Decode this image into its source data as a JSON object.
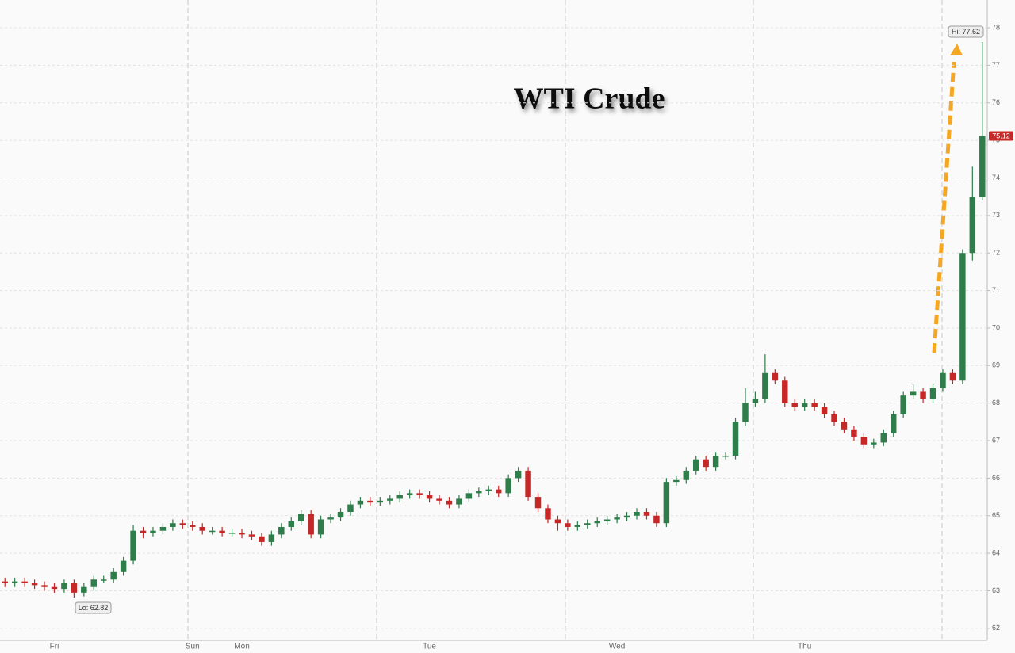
{
  "chart_data": {
    "type": "candlestick",
    "title": "WTI Crude",
    "categories": [
      null,
      null,
      null,
      null,
      null,
      "Fri",
      null,
      null,
      null,
      null,
      null,
      null,
      null,
      null,
      null,
      null,
      null,
      null,
      null,
      "Sun",
      null,
      null,
      null,
      null,
      "Mon",
      null,
      null,
      null,
      null,
      null,
      null,
      null,
      null,
      null,
      null,
      null,
      null,
      null,
      null,
      null,
      null,
      null,
      null,
      "Tue",
      null,
      null,
      null,
      null,
      null,
      null,
      null,
      null,
      null,
      null,
      null,
      null,
      null,
      null,
      null,
      null,
      null,
      null,
      "Wed",
      null,
      null,
      null,
      null,
      null,
      null,
      null,
      null,
      null,
      null,
      null,
      null,
      null,
      null,
      null,
      null,
      null,
      null,
      "Thu",
      null,
      null,
      null,
      null,
      null,
      null,
      null,
      null,
      null,
      null,
      null,
      null,
      null,
      null,
      null,
      null,
      null,
      null
    ],
    "open": [
      63.25,
      63.2,
      63.25,
      63.2,
      63.15,
      63.1,
      63.05,
      63.2,
      62.95,
      63.1,
      63.3,
      63.3,
      63.5,
      63.8,
      64.6,
      64.55,
      64.6,
      64.7,
      64.8,
      64.75,
      64.7,
      64.6,
      64.6,
      64.55,
      64.55,
      64.5,
      64.45,
      64.3,
      64.5,
      64.7,
      64.85,
      65.05,
      64.5,
      64.9,
      64.95,
      65.1,
      65.3,
      65.4,
      65.35,
      65.4,
      65.45,
      65.55,
      65.6,
      65.55,
      65.45,
      65.4,
      65.3,
      65.45,
      65.6,
      65.65,
      65.7,
      65.6,
      66.0,
      66.2,
      65.5,
      65.2,
      64.9,
      64.8,
      64.7,
      64.75,
      64.8,
      64.85,
      64.9,
      64.95,
      65.0,
      65.1,
      65.0,
      64.8,
      65.9,
      65.95,
      66.2,
      66.5,
      66.3,
      66.6,
      66.6,
      67.5,
      68.0,
      68.1,
      68.8,
      68.6,
      68.0,
      67.9,
      68.0,
      67.9,
      67.7,
      67.5,
      67.3,
      67.1,
      66.9,
      66.95,
      67.2,
      67.7,
      68.2,
      68.3,
      68.1,
      68.4,
      68.8,
      68.6,
      72.0,
      73.5
    ],
    "high": [
      63.35,
      63.35,
      63.35,
      63.3,
      63.25,
      63.2,
      63.3,
      63.3,
      63.2,
      63.4,
      63.4,
      63.6,
      63.9,
      64.75,
      64.7,
      64.7,
      64.8,
      64.9,
      64.9,
      64.85,
      64.8,
      64.7,
      64.7,
      64.65,
      64.65,
      64.6,
      64.55,
      64.6,
      64.8,
      64.95,
      65.15,
      65.15,
      65.0,
      65.05,
      65.2,
      65.4,
      65.5,
      65.5,
      65.5,
      65.55,
      65.65,
      65.7,
      65.7,
      65.65,
      65.55,
      65.5,
      65.55,
      65.7,
      65.75,
      65.8,
      65.8,
      66.1,
      66.3,
      66.3,
      65.6,
      65.3,
      65.0,
      64.9,
      64.85,
      64.9,
      64.95,
      65.0,
      65.05,
      65.1,
      65.2,
      65.2,
      65.1,
      66.0,
      66.05,
      66.3,
      66.6,
      66.6,
      66.7,
      66.7,
      67.6,
      68.4,
      68.3,
      69.3,
      68.9,
      68.7,
      68.1,
      68.1,
      68.1,
      68.0,
      67.8,
      67.6,
      67.4,
      67.2,
      67.05,
      67.3,
      67.8,
      68.3,
      68.5,
      68.4,
      68.5,
      68.9,
      68.9,
      72.1,
      74.3,
      77.62
    ],
    "low": [
      63.1,
      63.1,
      63.1,
      63.05,
      63.0,
      62.95,
      62.95,
      62.82,
      62.85,
      63.0,
      63.2,
      63.2,
      63.4,
      63.7,
      64.4,
      64.45,
      64.5,
      64.6,
      64.65,
      64.6,
      64.5,
      64.5,
      64.45,
      64.45,
      64.4,
      64.35,
      64.2,
      64.2,
      64.4,
      64.6,
      64.75,
      64.4,
      64.4,
      64.8,
      64.85,
      65.0,
      65.2,
      65.25,
      65.25,
      65.3,
      65.35,
      65.45,
      65.45,
      65.35,
      65.3,
      65.2,
      65.2,
      65.35,
      65.5,
      65.55,
      65.5,
      65.5,
      65.9,
      65.4,
      65.1,
      64.8,
      64.6,
      64.6,
      64.6,
      64.65,
      64.7,
      64.75,
      64.8,
      64.85,
      64.9,
      64.9,
      64.7,
      64.7,
      65.8,
      65.85,
      66.1,
      66.2,
      66.2,
      66.5,
      66.5,
      67.4,
      67.9,
      68.0,
      68.5,
      67.9,
      67.8,
      67.8,
      67.8,
      67.6,
      67.4,
      67.2,
      67.0,
      66.8,
      66.8,
      66.85,
      67.1,
      67.6,
      68.1,
      68.0,
      68.0,
      68.3,
      68.5,
      68.5,
      71.8,
      73.4
    ],
    "close": [
      63.2,
      63.25,
      63.2,
      63.15,
      63.1,
      63.05,
      63.2,
      62.95,
      63.1,
      63.3,
      63.3,
      63.5,
      63.8,
      64.6,
      64.55,
      64.6,
      64.7,
      64.8,
      64.75,
      64.7,
      64.6,
      64.6,
      64.55,
      64.55,
      64.5,
      64.45,
      64.3,
      64.5,
      64.7,
      64.85,
      65.05,
      64.5,
      64.9,
      64.95,
      65.1,
      65.3,
      65.4,
      65.35,
      65.4,
      65.45,
      65.55,
      65.6,
      65.55,
      65.45,
      65.4,
      65.3,
      65.45,
      65.6,
      65.65,
      65.7,
      65.6,
      66.0,
      66.2,
      65.5,
      65.2,
      64.9,
      64.8,
      64.7,
      64.75,
      64.8,
      64.85,
      64.9,
      64.95,
      65.0,
      65.1,
      65.0,
      64.8,
      65.9,
      65.95,
      66.2,
      66.5,
      66.3,
      66.6,
      66.6,
      67.5,
      68.0,
      68.1,
      68.8,
      68.6,
      68.0,
      67.9,
      68.0,
      67.9,
      67.7,
      67.5,
      67.3,
      67.1,
      66.9,
      66.95,
      67.2,
      67.7,
      68.2,
      68.3,
      68.1,
      68.4,
      68.8,
      68.6,
      72.0,
      73.5,
      75.12
    ],
    "up_color": "#2e7d4a",
    "down_color": "#c62828",
    "last_color": "#c62828",
    "ylim": [
      61.68,
      78.74
    ],
    "yticks": [
      62,
      63,
      64,
      65,
      66,
      67,
      68,
      69,
      70,
      71,
      72,
      73,
      74,
      75,
      76,
      77,
      78
    ],
    "grid": true,
    "annotations": [
      "Hi: 77.62",
      "Lo: 62.82"
    ]
  }
}
